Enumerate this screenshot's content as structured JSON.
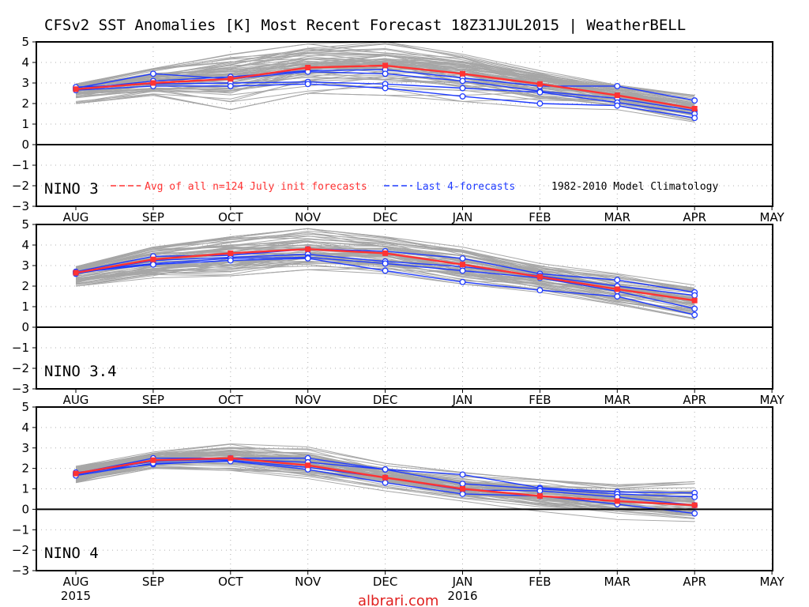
{
  "title": "CFSv2 SST Anomalies [K] Most Recent Forecast 18Z31JUL2015 | WeatherBELL",
  "watermark": "albrari.com",
  "colors": {
    "avg": "#ff3333",
    "last4": "#1f3bff",
    "members": "#a6a6a6",
    "grid": "#b0b0b0",
    "watermark": "#e0201f"
  },
  "legend": {
    "avg": "Avg of all n=124 July init forecasts",
    "last4": "Last 4-forecasts",
    "clim": "1982-2010 Model Climatology"
  },
  "chart_data": [
    {
      "type": "line",
      "panel_label": "NINO 3",
      "categories": [
        "AUG",
        "SEP",
        "OCT",
        "NOV",
        "DEC",
        "JAN",
        "FEB",
        "MAR",
        "APR",
        "MAY"
      ],
      "year_labels": [],
      "ylim": [
        -3,
        5
      ],
      "yticks": [
        -3,
        -2,
        -1,
        0,
        1,
        2,
        3,
        4,
        5
      ],
      "grid": "dotted",
      "zero_line": true,
      "avg": [
        2.7,
        3.0,
        3.2,
        3.75,
        3.85,
        3.45,
        2.95,
        2.4,
        1.75
      ],
      "last4": [
        [
          2.7,
          3.1,
          3.3,
          3.6,
          3.65,
          3.25,
          2.85,
          2.85,
          2.15
        ],
        [
          2.75,
          3.45,
          3.2,
          3.55,
          3.45,
          3.1,
          2.6,
          2.25,
          1.65
        ],
        [
          2.8,
          2.95,
          3.0,
          3.05,
          2.95,
          2.75,
          2.55,
          2.05,
          1.5
        ],
        [
          2.65,
          2.85,
          2.85,
          2.95,
          2.75,
          2.35,
          2.0,
          1.9,
          1.3
        ]
      ],
      "members_range": {
        "low": [
          2.0,
          2.4,
          1.7,
          2.5,
          2.4,
          2.1,
          1.8,
          1.7,
          1.1
        ],
        "high": [
          2.95,
          3.7,
          4.4,
          4.9,
          5.0,
          4.4,
          3.6,
          2.9,
          2.4
        ]
      }
    },
    {
      "type": "line",
      "panel_label": "NINO 3.4",
      "categories": [
        "AUG",
        "SEP",
        "OCT",
        "NOV",
        "DEC",
        "JAN",
        "FEB",
        "MAR",
        "APR",
        "MAY"
      ],
      "year_labels": [],
      "ylim": [
        -3,
        5
      ],
      "yticks": [
        -3,
        -2,
        -1,
        0,
        1,
        2,
        3,
        4,
        5
      ],
      "grid": "dotted",
      "zero_line": true,
      "avg": [
        2.65,
        3.3,
        3.6,
        3.8,
        3.6,
        3.05,
        2.45,
        1.85,
        1.3
      ],
      "last4": [
        [
          2.7,
          3.45,
          3.5,
          3.8,
          3.7,
          3.35,
          2.6,
          2.3,
          1.7
        ],
        [
          2.6,
          3.25,
          3.4,
          3.55,
          3.2,
          2.95,
          2.5,
          2.0,
          1.55
        ],
        [
          2.7,
          3.1,
          3.35,
          3.4,
          3.1,
          2.75,
          2.4,
          1.75,
          0.9
        ],
        [
          2.65,
          3.05,
          3.25,
          3.35,
          2.75,
          2.2,
          1.8,
          1.5,
          0.6
        ]
      ],
      "members_range": {
        "low": [
          2.0,
          2.4,
          2.5,
          2.8,
          2.6,
          2.1,
          1.7,
          1.1,
          0.4
        ],
        "high": [
          2.95,
          3.9,
          4.4,
          4.8,
          4.4,
          3.9,
          3.1,
          2.6,
          2.05
        ]
      }
    },
    {
      "type": "line",
      "panel_label": "NINO 4",
      "categories": [
        "AUG",
        "SEP",
        "OCT",
        "NOV",
        "DEC",
        "JAN",
        "FEB",
        "MAR",
        "APR",
        "MAY"
      ],
      "year_labels": [
        "2015",
        "",
        "",
        "",
        "",
        "2016",
        "",
        "",
        "",
        ""
      ],
      "ylim": [
        -3,
        5
      ],
      "yticks": [
        -3,
        -2,
        -1,
        0,
        1,
        2,
        3,
        4,
        5
      ],
      "grid": "dotted",
      "zero_line": true,
      "avg": [
        1.75,
        2.4,
        2.5,
        2.15,
        1.55,
        1.0,
        0.65,
        0.4,
        0.2
      ],
      "last4": [
        [
          1.75,
          2.5,
          2.5,
          2.5,
          1.95,
          1.7,
          1.05,
          0.85,
          0.8
        ],
        [
          1.7,
          2.35,
          2.45,
          2.3,
          1.95,
          1.25,
          1.0,
          0.75,
          0.6
        ],
        [
          1.8,
          2.2,
          2.4,
          2.05,
          1.55,
          0.95,
          0.9,
          0.6,
          0.2
        ],
        [
          1.65,
          2.25,
          2.35,
          1.95,
          1.3,
          0.75,
          0.65,
          0.25,
          -0.2
        ]
      ],
      "members_range": {
        "low": [
          1.3,
          2.0,
          1.9,
          1.5,
          0.9,
          0.4,
          -0.1,
          -0.5,
          -0.6
        ],
        "high": [
          2.1,
          2.8,
          3.2,
          3.05,
          2.25,
          1.8,
          1.45,
          1.2,
          1.35
        ]
      }
    }
  ]
}
